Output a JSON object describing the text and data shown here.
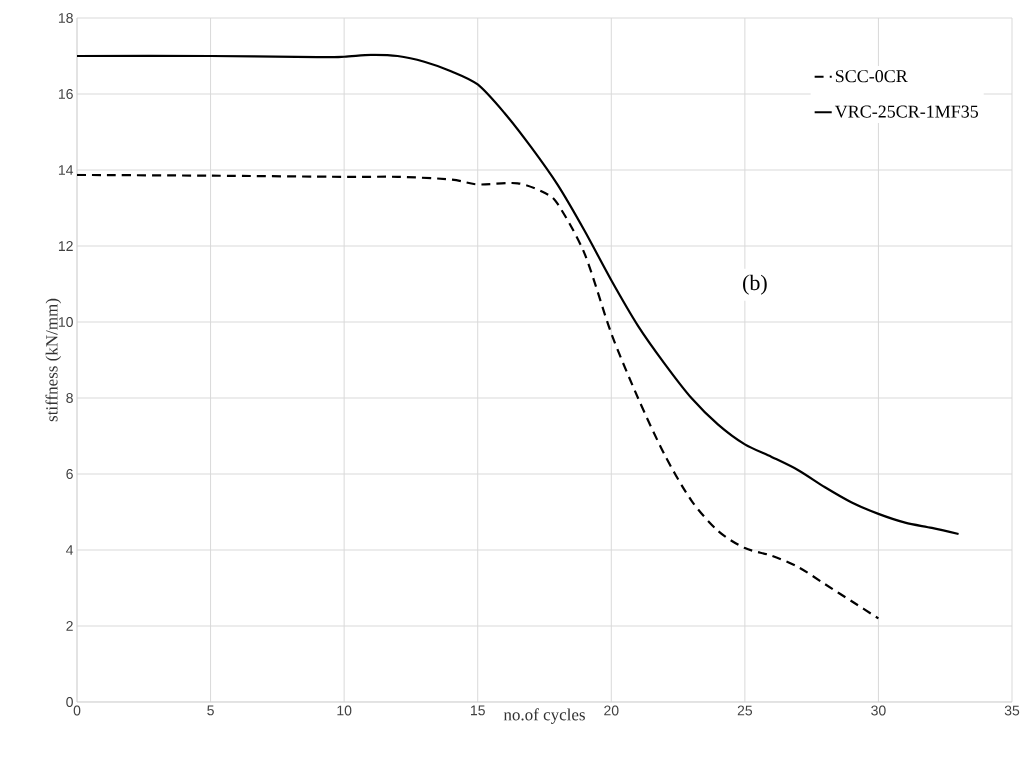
{
  "chart_data": {
    "type": "line",
    "xlabel": "no.of cycles",
    "ylabel": "stiffness  (kN/mm)",
    "annotations": [
      "(b)"
    ],
    "xlim": [
      0,
      35
    ],
    "xticks": [
      0,
      5,
      10,
      15,
      20,
      25,
      30,
      35
    ],
    "ylim": [
      0,
      18
    ],
    "yticks": [
      0,
      2,
      4,
      6,
      8,
      10,
      12,
      14,
      16,
      18
    ],
    "grid": true,
    "legend": "top right",
    "series": [
      {
        "name": "SCC-0CR",
        "color": "#000000",
        "line_style": "dashed",
        "x": [
          0,
          5,
          10,
          12,
          14,
          15,
          16.5,
          17.5,
          18,
          19,
          20,
          21,
          22,
          23,
          24,
          25,
          26,
          27,
          28,
          29,
          30
        ],
        "values": [
          13.87,
          13.85,
          13.82,
          13.82,
          13.75,
          13.62,
          13.65,
          13.4,
          13.1,
          11.8,
          9.7,
          8,
          6.5,
          5.3,
          4.5,
          4.05,
          3.85,
          3.55,
          3.1,
          2.65,
          2.2
        ]
      },
      {
        "name": "VRC-25CR-1MF35",
        "color": "#000000",
        "line_style": "solid",
        "x": [
          0,
          5,
          9,
          10,
          11,
          12,
          13,
          14,
          15,
          16,
          17,
          18,
          19,
          20,
          21,
          22,
          23,
          24,
          25,
          26,
          27,
          28,
          29,
          30,
          31,
          32,
          33
        ],
        "values": [
          17,
          17,
          16.97,
          16.98,
          17.03,
          17,
          16.85,
          16.6,
          16.25,
          15.5,
          14.6,
          13.6,
          12.4,
          11.1,
          9.9,
          8.9,
          8,
          7.3,
          6.78,
          6.45,
          6.1,
          5.65,
          5.25,
          4.95,
          4.72,
          4.58,
          4.42
        ]
      }
    ]
  }
}
